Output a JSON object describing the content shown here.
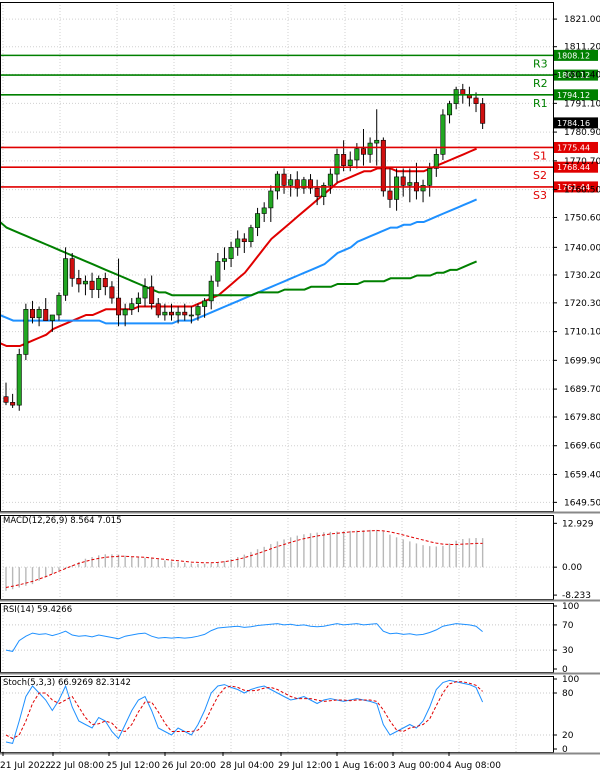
{
  "chart_data": [
    {
      "type": "candlestick",
      "title": "",
      "price_axis_ticks": [
        1821.0,
        1811.2,
        1801.4,
        1791.1,
        1780.9,
        1770.7,
        1760.5,
        1750.6,
        1740.0,
        1730.2,
        1720.3,
        1710.1,
        1699.9,
        1689.7,
        1679.8,
        1669.6,
        1659.4,
        1649.5
      ],
      "ylim": [
        1647.5,
        1826
      ],
      "time_axis_labels": [
        "21 Jul 2022",
        "22 Jul 08:00",
        "25 Jul 12:00",
        "26 Jul 20:00",
        "28 Jul 04:00",
        "29 Jul 12:00",
        "1 Aug 16:00",
        "3 Aug 00:00",
        "4 Aug 08:00"
      ],
      "levels": [
        {
          "name": "R3",
          "value": 1808.12,
          "label": "1808.12",
          "color": "#008000"
        },
        {
          "name": "R2",
          "value": 1801.12,
          "label": "1801.12",
          "color": "#008000"
        },
        {
          "name": "R1",
          "value": 1794.12,
          "label": "1794.12",
          "color": "#008000"
        },
        {
          "name": "S1",
          "value": 1775.44,
          "label": "1775.44",
          "color": "#e00000"
        },
        {
          "name": "S2",
          "value": 1768.44,
          "label": "1768.44",
          "color": "#e00000"
        },
        {
          "name": "S3",
          "value": 1761.44,
          "label": "1761.44",
          "color": "#e00000"
        }
      ],
      "current_price": {
        "value": 1784.16,
        "label": "1784.16"
      },
      "candles": [
        [
          1687,
          1692,
          1684,
          1685
        ],
        [
          1685,
          1688,
          1683,
          1684
        ],
        [
          1684,
          1704,
          1682,
          1702
        ],
        [
          1702,
          1720,
          1700,
          1718
        ],
        [
          1718,
          1721,
          1713,
          1715
        ],
        [
          1715,
          1719,
          1712,
          1718
        ],
        [
          1718,
          1722,
          1714,
          1714
        ],
        [
          1714,
          1716,
          1710,
          1716
        ],
        [
          1716,
          1724,
          1714,
          1723
        ],
        [
          1723,
          1740,
          1721,
          1736
        ],
        [
          1736,
          1738,
          1726,
          1729
        ],
        [
          1729,
          1732,
          1724,
          1727
        ],
        [
          1727,
          1730,
          1723,
          1728
        ],
        [
          1728,
          1731,
          1722,
          1725
        ],
        [
          1725,
          1730,
          1722,
          1729
        ],
        [
          1729,
          1731,
          1723,
          1726
        ],
        [
          1726,
          1728,
          1720,
          1722
        ],
        [
          1722,
          1736,
          1712,
          1716
        ],
        [
          1716,
          1720,
          1712,
          1718
        ],
        [
          1718,
          1722,
          1716,
          1720
        ],
        [
          1720,
          1724,
          1717,
          1722
        ],
        [
          1722,
          1729,
          1719,
          1726
        ],
        [
          1726,
          1730,
          1718,
          1720
        ],
        [
          1720,
          1722,
          1715,
          1716
        ],
        [
          1716,
          1720,
          1714,
          1717
        ],
        [
          1717,
          1720,
          1714,
          1716
        ],
        [
          1716,
          1719,
          1713,
          1717
        ],
        [
          1717,
          1720,
          1714,
          1716
        ],
        [
          1716,
          1719,
          1713,
          1716
        ],
        [
          1716,
          1720,
          1714,
          1719
        ],
        [
          1719,
          1722,
          1715,
          1721
        ],
        [
          1721,
          1730,
          1718,
          1728
        ],
        [
          1728,
          1738,
          1726,
          1735
        ],
        [
          1735,
          1740,
          1732,
          1736
        ],
        [
          1736,
          1742,
          1733,
          1740
        ],
        [
          1740,
          1746,
          1737,
          1743
        ],
        [
          1743,
          1745,
          1738,
          1742
        ],
        [
          1742,
          1748,
          1740,
          1747
        ],
        [
          1747,
          1754,
          1744,
          1752
        ],
        [
          1752,
          1756,
          1749,
          1754
        ],
        [
          1754,
          1762,
          1749,
          1760
        ],
        [
          1760,
          1767,
          1757,
          1766
        ],
        [
          1766,
          1768,
          1759,
          1762
        ],
        [
          1762,
          1766,
          1758,
          1764
        ],
        [
          1764,
          1767,
          1758,
          1761
        ],
        [
          1761,
          1765,
          1759,
          1764
        ],
        [
          1764,
          1766,
          1759,
          1761
        ],
        [
          1761,
          1764,
          1755,
          1758
        ],
        [
          1758,
          1763,
          1755,
          1762
        ],
        [
          1762,
          1768,
          1759,
          1766
        ],
        [
          1766,
          1775,
          1763,
          1773
        ],
        [
          1773,
          1778,
          1767,
          1769
        ],
        [
          1769,
          1774,
          1767,
          1771
        ],
        [
          1771,
          1777,
          1768,
          1775
        ],
        [
          1775,
          1782,
          1769,
          1773
        ],
        [
          1773,
          1779,
          1770,
          1777
        ],
        [
          1777,
          1789,
          1769,
          1778
        ],
        [
          1778,
          1779,
          1758,
          1760
        ],
        [
          1760,
          1768,
          1754,
          1757
        ],
        [
          1757,
          1768,
          1753,
          1765
        ],
        [
          1765,
          1768,
          1758,
          1762
        ],
        [
          1762,
          1768,
          1756,
          1763
        ],
        [
          1763,
          1770,
          1757,
          1760
        ],
        [
          1760,
          1764,
          1756,
          1762
        ],
        [
          1762,
          1770,
          1758,
          1768
        ],
        [
          1768,
          1775,
          1765,
          1773
        ],
        [
          1773,
          1789,
          1771,
          1787
        ],
        [
          1787,
          1792,
          1784,
          1791
        ],
        [
          1791,
          1797,
          1789,
          1796
        ],
        [
          1796,
          1798,
          1791,
          1794
        ],
        [
          1794,
          1797,
          1790,
          1793
        ],
        [
          1793,
          1795,
          1788,
          1791
        ],
        [
          1791,
          1793,
          1782,
          1784
        ]
      ],
      "series": [
        {
          "name": "MA-fast",
          "color": "#e00000",
          "values": [
            1706,
            1705,
            1705,
            1705,
            1706,
            1707,
            1708,
            1709,
            1711,
            1712,
            1713,
            1714,
            1715,
            1716,
            1716,
            1717,
            1718,
            1718,
            1718,
            1718,
            1718,
            1719,
            1719,
            1719,
            1719,
            1719,
            1719,
            1719,
            1719,
            1719,
            1720,
            1721,
            1722,
            1723,
            1725,
            1727,
            1729,
            1731,
            1734,
            1737,
            1740,
            1743,
            1745,
            1747,
            1749,
            1751,
            1753,
            1755,
            1757,
            1759,
            1761,
            1763,
            1764,
            1765,
            1766,
            1767,
            1767,
            1768,
            1768,
            1768,
            1767,
            1767,
            1767,
            1767,
            1767,
            1768,
            1769,
            1770,
            1771,
            1772,
            1773,
            1774,
            1775
          ]
        },
        {
          "name": "MA-mid",
          "color": "#1e90ff",
          "values": [
            1716,
            1715,
            1714,
            1714,
            1714,
            1714,
            1714,
            1714,
            1714,
            1714,
            1714,
            1714,
            1714,
            1714,
            1714,
            1714,
            1713,
            1713,
            1713,
            1713,
            1713,
            1713,
            1713,
            1713,
            1713,
            1713,
            1713,
            1714,
            1714,
            1714,
            1715,
            1716,
            1717,
            1718,
            1719,
            1720,
            1721,
            1722,
            1723,
            1724,
            1725,
            1726,
            1727,
            1728,
            1729,
            1730,
            1731,
            1732,
            1733,
            1734,
            1736,
            1738,
            1739,
            1740,
            1742,
            1743,
            1744,
            1745,
            1746,
            1747,
            1747,
            1748,
            1748,
            1749,
            1749,
            1750,
            1751,
            1752,
            1753,
            1754,
            1755,
            1756,
            1757
          ]
        },
        {
          "name": "MA-slow",
          "color": "#008000",
          "values": [
            1749,
            1747,
            1746,
            1745,
            1744,
            1743,
            1742,
            1741,
            1740,
            1739,
            1738,
            1737,
            1736,
            1735,
            1734,
            1733,
            1732,
            1731,
            1730,
            1729,
            1728,
            1727,
            1726,
            1725,
            1724,
            1724,
            1723,
            1723,
            1723,
            1723,
            1723,
            1723,
            1723,
            1723,
            1723,
            1723,
            1723,
            1723,
            1723,
            1724,
            1724,
            1724,
            1724,
            1725,
            1725,
            1725,
            1725,
            1726,
            1726,
            1726,
            1726,
            1727,
            1727,
            1727,
            1727,
            1728,
            1728,
            1728,
            1728,
            1729,
            1729,
            1729,
            1729,
            1730,
            1730,
            1730,
            1731,
            1731,
            1732,
            1732,
            1733,
            1734,
            1735
          ]
        }
      ]
    },
    {
      "type": "bar",
      "title": "MACD(12,26,9) 8.564 7.015",
      "ylim": [
        -8.5,
        14.5
      ],
      "axis_ticks": [
        12.929,
        0.0,
        -8.233
      ],
      "axis_tick_labels": [
        "12.929",
        "0.00",
        "-8.233"
      ],
      "histogram": [
        -7,
        -6.5,
        -6,
        -5.5,
        -5,
        -4,
        -3,
        -2,
        -1,
        -0.5,
        0.5,
        1.5,
        2.5,
        3,
        3.5,
        3.8,
        3.8,
        3.7,
        3.4,
        3.1,
        3.0,
        2.8,
        2.6,
        2.3,
        2.0,
        1.7,
        1.5,
        1.3,
        1.1,
        1.0,
        1.0,
        1.1,
        1.4,
        1.8,
        2.4,
        3.0,
        3.7,
        4.5,
        5.3,
        6.0,
        6.8,
        7.6,
        8.2,
        8.8,
        9.3,
        9.7,
        10.0,
        10.2,
        10.3,
        10.4,
        10.5,
        10.6,
        10.7,
        10.8,
        10.9,
        11.0,
        11.0,
        10.5,
        9.6,
        8.8,
        8.2,
        7.6,
        7.0,
        6.5,
        6.2,
        6.1,
        6.3,
        7.0,
        7.8,
        8.3,
        8.5,
        8.6,
        8.564
      ],
      "signal": [
        -6,
        -5.6,
        -5.2,
        -4.7,
        -4.2,
        -3.5,
        -2.8,
        -2,
        -1.2,
        -0.4,
        0.4,
        1.1,
        1.7,
        2.2,
        2.6,
        2.9,
        3.1,
        3.2,
        3.2,
        3.1,
        3.0,
        2.9,
        2.7,
        2.5,
        2.3,
        2.1,
        1.9,
        1.7,
        1.5,
        1.4,
        1.3,
        1.3,
        1.4,
        1.6,
        1.9,
        2.3,
        2.8,
        3.4,
        4.0,
        4.7,
        5.4,
        6.1,
        6.7,
        7.3,
        7.9,
        8.4,
        8.8,
        9.2,
        9.5,
        9.8,
        10.0,
        10.2,
        10.4,
        10.5,
        10.6,
        10.7,
        10.8,
        10.7,
        10.4,
        10.0,
        9.5,
        9.0,
        8.5,
        8.0,
        7.5,
        7.1,
        6.8,
        6.7,
        6.7,
        6.8,
        6.9,
        7.0,
        7.015
      ]
    },
    {
      "type": "line",
      "title": "RSI(14) 59.4266",
      "ylim": [
        0,
        100
      ],
      "axis_ticks": [
        100,
        70,
        30,
        0
      ],
      "axis_tick_labels": [
        "100",
        "70",
        "30",
        "0"
      ],
      "values": [
        30,
        28,
        45,
        52,
        57,
        55,
        56,
        53,
        56,
        60,
        54,
        52,
        53,
        51,
        54,
        52,
        50,
        48,
        52,
        54,
        56,
        57,
        52,
        49,
        50,
        49,
        50,
        49,
        50,
        52,
        55,
        61,
        65,
        66,
        67,
        68,
        66,
        67,
        69,
        70,
        71,
        72,
        70,
        71,
        69,
        70,
        68,
        67,
        68,
        70,
        72,
        70,
        71,
        72,
        70,
        71,
        72,
        60,
        56,
        57,
        55,
        56,
        54,
        55,
        58,
        62,
        68,
        70,
        72,
        71,
        70,
        68,
        59.43
      ]
    },
    {
      "type": "line",
      "title": "Stoch(5,3,3) 66.9269 82.3142",
      "ylim": [
        0,
        100
      ],
      "axis_ticks": [
        100,
        80,
        20,
        0
      ],
      "axis_tick_labels": [
        "100",
        "80",
        "20",
        "0"
      ],
      "series": [
        {
          "name": "%K",
          "color": "#1e90ff",
          "values": [
            10,
            8,
            40,
            75,
            90,
            80,
            70,
            55,
            70,
            90,
            60,
            40,
            35,
            30,
            45,
            40,
            25,
            15,
            35,
            55,
            70,
            75,
            55,
            30,
            25,
            20,
            30,
            25,
            20,
            35,
            55,
            80,
            90,
            92,
            88,
            85,
            80,
            85,
            88,
            90,
            85,
            80,
            75,
            70,
            72,
            75,
            70,
            65,
            70,
            72,
            70,
            68,
            70,
            72,
            70,
            68,
            65,
            35,
            20,
            25,
            30,
            35,
            30,
            40,
            60,
            85,
            95,
            98,
            96,
            94,
            92,
            88,
            66.93
          ]
        },
        {
          "name": "%D",
          "color": "#e00000",
          "values": [
            20,
            15,
            20,
            40,
            65,
            80,
            80,
            70,
            65,
            70,
            75,
            60,
            45,
            35,
            36,
            40,
            37,
            27,
            25,
            35,
            53,
            67,
            67,
            53,
            37,
            25,
            25,
            25,
            25,
            27,
            37,
            57,
            75,
            87,
            90,
            88,
            84,
            83,
            84,
            87,
            88,
            85,
            80,
            75,
            72,
            72,
            72,
            70,
            68,
            69,
            70,
            70,
            69,
            70,
            70,
            70,
            68,
            56,
            40,
            27,
            25,
            30,
            32,
            35,
            43,
            62,
            80,
            93,
            96,
            96,
            94,
            91,
            82.31
          ]
        }
      ]
    }
  ]
}
